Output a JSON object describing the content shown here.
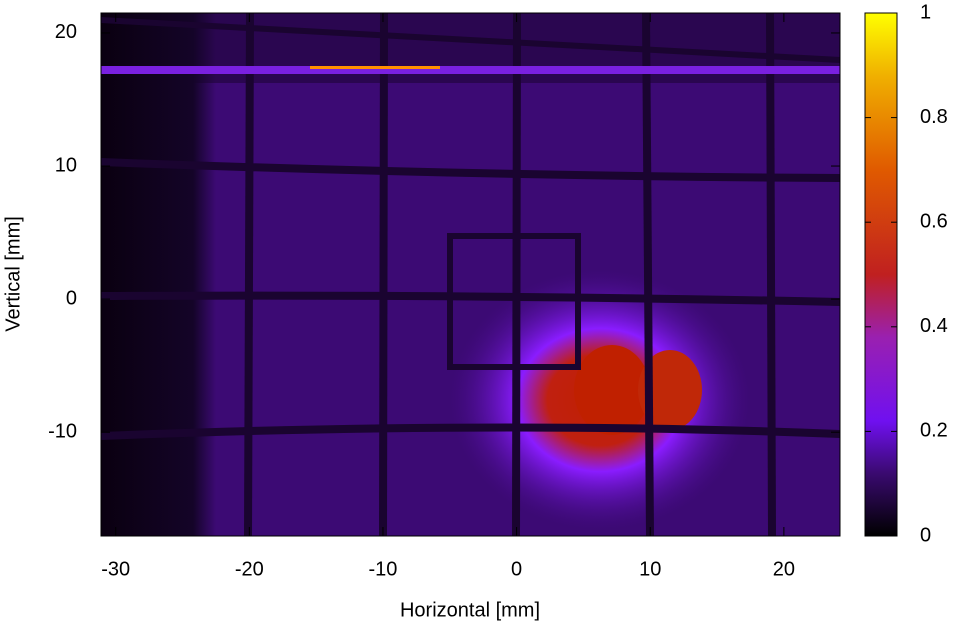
{
  "chart_data": {
    "type": "heatmap",
    "x_label": "Horizontal [mm]",
    "y_label": "Vertical [mm]",
    "xlim": [
      -31.1,
      24.2
    ],
    "xticks": [
      -30,
      -20,
      -10,
      0,
      10,
      20
    ],
    "ylim": [
      -17.8,
      21.5
    ],
    "yticks": [
      -10,
      0,
      10,
      20
    ],
    "clim": [
      0,
      1
    ],
    "cticks": [
      0,
      0.2,
      0.4,
      0.6,
      0.8,
      1
    ]
  }
}
